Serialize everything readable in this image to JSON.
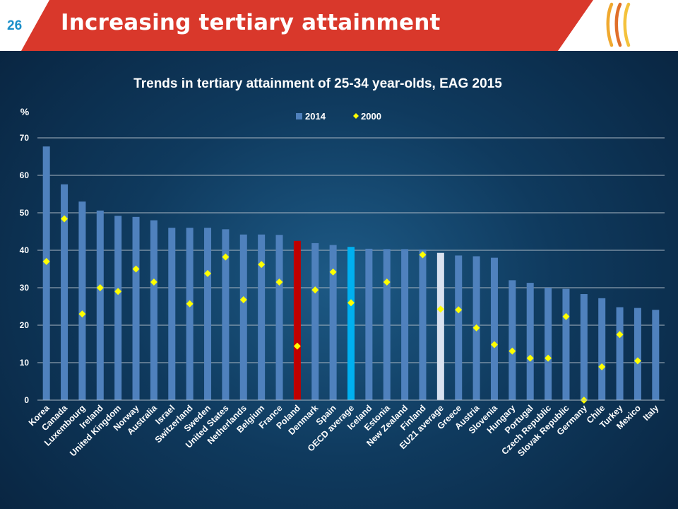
{
  "slide": {
    "number": "26",
    "title": "Increasing tertiary attainment"
  },
  "colors": {
    "header_red": "#d9382b",
    "series_2014": "#4f81bd",
    "series_2000": "#ffff00",
    "highlight_poland": "#c00000",
    "highlight_oecd": "#00b0f0",
    "highlight_eu21": "#d9e2f0"
  },
  "chart_data": {
    "type": "bar",
    "title": "Trends in tertiary attainment of 25-34 year-olds, EAG 2015",
    "ylabel": "%",
    "ylim": [
      0,
      70
    ],
    "yticks": [
      0,
      10,
      20,
      30,
      40,
      50,
      60,
      70
    ],
    "grid": true,
    "legend_position": "top-center",
    "categories": [
      "Korea",
      "Canada",
      "Luxembourg",
      "Ireland",
      "United Kingdom",
      "Norway",
      "Australia",
      "Israel",
      "Switzerland",
      "Sweden",
      "United States",
      "Netherlands",
      "Belgium",
      "France",
      "Poland",
      "Denmark",
      "Spain",
      "OECD average",
      "Iceland",
      "Estonia",
      "New Zealand",
      "Finland",
      "EU21 average",
      "Greece",
      "Austria",
      "Slovenia",
      "Hungary",
      "Portugal",
      "Czech Republic",
      "Slovak Republic",
      "Germany",
      "Chile",
      "Turkey",
      "Mexico",
      "Italy"
    ],
    "series": [
      {
        "name": "2014",
        "kind": "bar",
        "values": [
          67.7,
          57.6,
          53,
          50.6,
          49.2,
          48.9,
          48,
          46,
          46,
          46,
          45.6,
          44.2,
          44.2,
          44.1,
          42.5,
          41.9,
          41.4,
          40.9,
          40.4,
          40.3,
          40.3,
          40.2,
          39.3,
          38.6,
          38.4,
          38,
          32,
          31.3,
          30,
          29.7,
          28.3,
          27.2,
          24.8,
          24.6,
          24.1
        ]
      },
      {
        "name": "2000",
        "kind": "marker",
        "values": [
          37,
          48.4,
          23,
          30,
          29,
          35,
          31.5,
          null,
          25.7,
          33.8,
          38.2,
          26.8,
          36.2,
          31.5,
          14.4,
          29.4,
          34.2,
          26,
          null,
          31.5,
          null,
          38.8,
          24.3,
          24.1,
          19.3,
          14.8,
          13.1,
          11.2,
          11.2,
          22.3,
          0,
          8.9,
          17.5,
          10.5,
          null
        ]
      }
    ],
    "highlight_categories": [
      "Poland",
      "OECD average",
      "EU21 average"
    ]
  }
}
